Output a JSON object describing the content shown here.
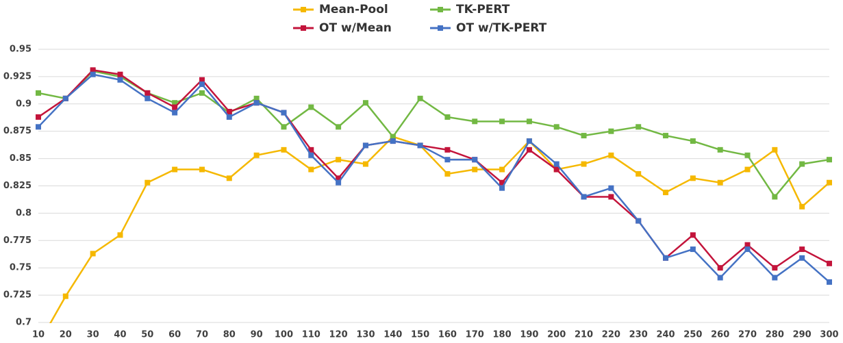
{
  "chart_data": {
    "type": "line",
    "x": [
      10,
      20,
      30,
      40,
      50,
      60,
      70,
      80,
      90,
      100,
      110,
      120,
      130,
      140,
      150,
      160,
      170,
      180,
      190,
      200,
      210,
      220,
      230,
      240,
      250,
      260,
      270,
      280,
      290,
      300
    ],
    "series": [
      {
        "name": "Mean-Pool",
        "color": "#f5b800",
        "values": [
          0.68,
          0.724,
          0.763,
          0.78,
          0.828,
          0.84,
          0.84,
          0.832,
          0.853,
          0.858,
          0.84,
          0.849,
          0.845,
          0.87,
          0.862,
          0.836,
          0.84,
          0.84,
          0.866,
          0.84,
          0.845,
          0.853,
          0.836,
          0.819,
          0.832,
          0.828,
          0.84,
          0.858,
          0.806,
          0.828
        ]
      },
      {
        "name": "TK-PERT",
        "color": "#72b843",
        "values": [
          0.91,
          0.905,
          0.93,
          0.925,
          0.91,
          0.901,
          0.91,
          0.892,
          0.905,
          0.879,
          0.897,
          0.879,
          0.901,
          0.87,
          0.905,
          0.888,
          0.884,
          0.884,
          0.884,
          0.879,
          0.871,
          0.875,
          0.879,
          0.871,
          0.866,
          0.858,
          0.853,
          0.815,
          0.845,
          0.849
        ]
      },
      {
        "name": "OT w/Mean",
        "color": "#c3143b",
        "values": [
          0.888,
          0.905,
          0.931,
          0.927,
          0.91,
          0.897,
          0.922,
          0.893,
          0.901,
          0.892,
          0.858,
          0.832,
          0.862,
          0.866,
          0.862,
          0.858,
          0.849,
          0.828,
          0.858,
          0.84,
          0.815,
          0.815,
          0.793,
          0.759,
          0.78,
          0.75,
          0.771,
          0.75,
          0.767,
          0.754
        ]
      },
      {
        "name": "OT w/TK-PERT",
        "color": "#4472c4",
        "values": [
          0.879,
          0.905,
          0.927,
          0.922,
          0.905,
          0.892,
          0.918,
          0.888,
          0.901,
          0.892,
          0.853,
          0.828,
          0.862,
          0.866,
          0.862,
          0.849,
          0.849,
          0.823,
          0.866,
          0.845,
          0.815,
          0.823,
          0.793,
          0.759,
          0.767,
          0.741,
          0.767,
          0.741,
          0.759,
          0.737
        ]
      }
    ],
    "xlim": [
      10,
      300
    ],
    "xticks": [
      10,
      20,
      30,
      40,
      50,
      60,
      70,
      80,
      90,
      100,
      110,
      120,
      130,
      140,
      150,
      160,
      170,
      180,
      190,
      200,
      210,
      220,
      230,
      240,
      250,
      260,
      270,
      280,
      290,
      300
    ],
    "ylim": [
      0.7,
      0.95
    ],
    "yticks": [
      0.7,
      0.725,
      0.75,
      0.775,
      0.8,
      0.825,
      0.85,
      0.875,
      0.9,
      0.925,
      0.95
    ],
    "grid": true,
    "legend": "top"
  }
}
